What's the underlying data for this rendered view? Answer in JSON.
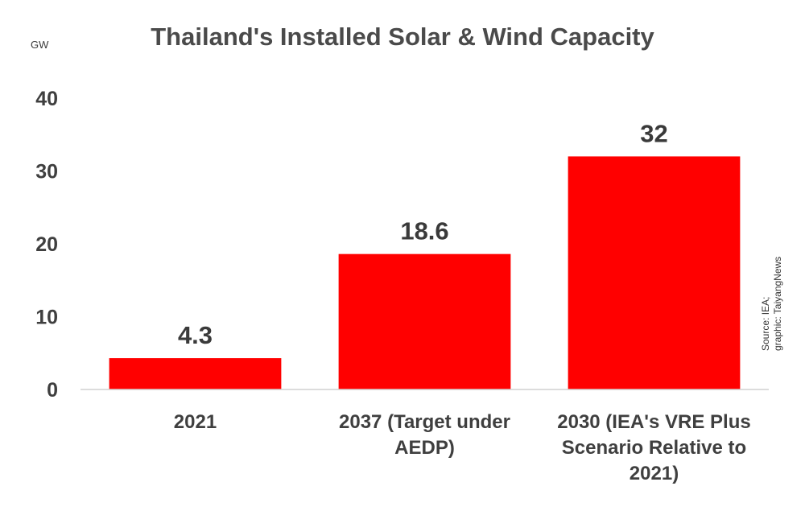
{
  "chart_data": {
    "type": "bar",
    "title": "Thailand's Installed Solar & Wind Capacity",
    "ylabel": "GW",
    "xlabel": "",
    "categories": [
      [
        "2021"
      ],
      [
        "2037 (Target under",
        "AEDP)"
      ],
      [
        "2030 (IEA's VRE Plus",
        "Scenario Relative to",
        "2021)"
      ]
    ],
    "values": [
      4.3,
      18.6,
      32
    ],
    "data_labels": [
      "4.3",
      "18.6",
      "32"
    ],
    "yticks": [
      "0",
      "10",
      "20",
      "30",
      "40"
    ],
    "ylim": [
      0,
      40
    ],
    "grid": false,
    "legend": "none",
    "bar_color": "#ff0000",
    "source": [
      "Source: IEA;",
      "graphic: TaiyangNews"
    ]
  }
}
